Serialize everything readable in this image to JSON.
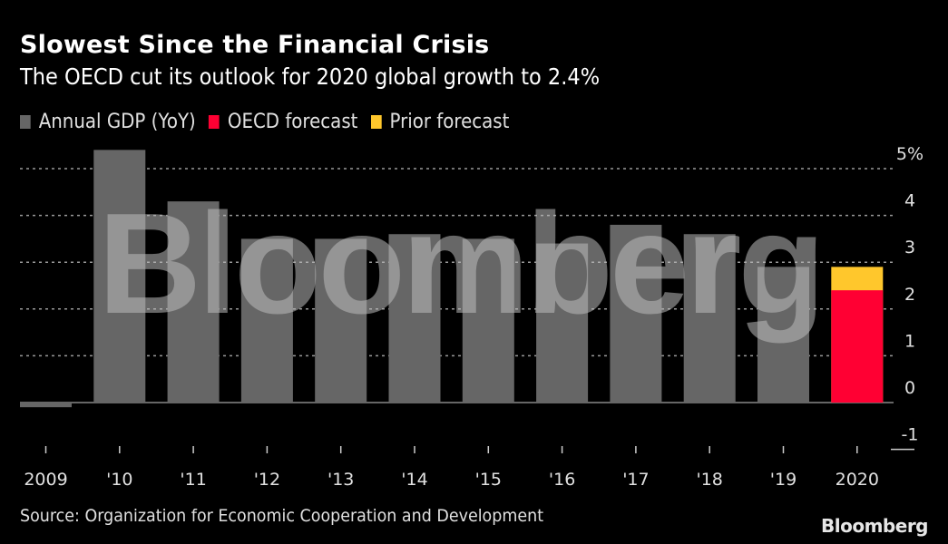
{
  "header": {
    "title": "Slowest Since the Financial Crisis",
    "subtitle": "The OECD cut its outlook for 2020 global growth to 2.4%"
  },
  "legend": [
    {
      "label": "Annual GDP (YoY)",
      "color": "#666666"
    },
    {
      "label": "OECD forecast",
      "color": "#ff0033"
    },
    {
      "label": "Prior forecast",
      "color": "#ffc72c"
    }
  ],
  "footer": {
    "source": "Source: Organization for Economic Cooperation and Development",
    "logo": "Bloomberg"
  },
  "watermark": "Bloomberg",
  "chart_data": {
    "type": "bar",
    "title": "Slowest Since the Financial Crisis",
    "subtitle": "The OECD cut its outlook for 2020 global growth to 2.4%",
    "xlabel": "",
    "ylabel": "",
    "categories": [
      "2009",
      "'10",
      "'11",
      "'12",
      "'13",
      "'14",
      "'15",
      "'16",
      "'17",
      "'18",
      "'19",
      "2020"
    ],
    "series": [
      {
        "name": "Annual GDP (YoY)",
        "color": "#666666",
        "values": [
          -0.1,
          5.4,
          4.3,
          3.5,
          3.5,
          3.6,
          3.5,
          3.4,
          3.8,
          3.6,
          2.9,
          null
        ]
      },
      {
        "name": "OECD forecast",
        "color": "#ff0033",
        "values": [
          null,
          null,
          null,
          null,
          null,
          null,
          null,
          null,
          null,
          null,
          null,
          2.4
        ]
      },
      {
        "name": "Prior forecast",
        "color": "#ffc72c",
        "values": [
          null,
          null,
          null,
          null,
          null,
          null,
          null,
          null,
          null,
          null,
          null,
          2.9
        ]
      }
    ],
    "y_ticks": [
      -1,
      0,
      1,
      2,
      3,
      4,
      5
    ],
    "y_tick_labels": [
      "-1",
      "0",
      "1",
      "2",
      "3",
      "4",
      "5%"
    ],
    "ylim": [
      -1,
      5
    ],
    "y_axis_side": "right",
    "grid": true,
    "legend_position": "top-left"
  }
}
